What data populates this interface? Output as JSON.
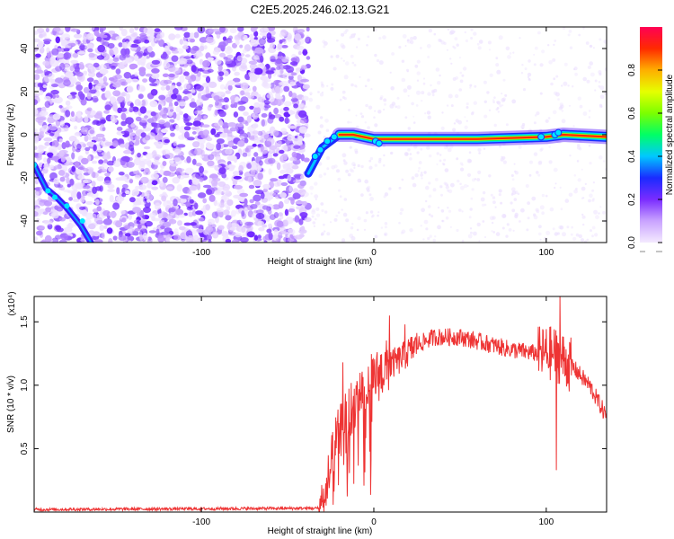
{
  "title": "C2E5.2025.246.02.13.G21",
  "chart_data": [
    {
      "type": "heatmap",
      "xlabel": "Height of straight line (km)",
      "ylabel": "Frequency (Hz)",
      "xlim": [
        -197,
        135
      ],
      "ylim": [
        -50,
        50
      ],
      "xticks": [
        -100,
        0,
        100
      ],
      "yticks": [
        -40,
        -20,
        0,
        20,
        40
      ],
      "colorbar": {
        "label": "Normalized spectral amplitude",
        "range": [
          0,
          1
        ],
        "ticks": [
          0.0,
          0.2,
          0.4,
          0.6,
          0.8
        ]
      },
      "noise_region_xmax": -38,
      "signal_track": [
        {
          "x": -197,
          "y": -14
        },
        {
          "x": -190,
          "y": -25
        },
        {
          "x": -184,
          "y": -29
        },
        {
          "x": -178,
          "y": -34
        },
        {
          "x": -170,
          "y": -42
        },
        {
          "x": -164,
          "y": -50
        },
        {
          "x": -38,
          "y": -18
        },
        {
          "x": -34,
          "y": -12
        },
        {
          "x": -30,
          "y": -6
        },
        {
          "x": -25,
          "y": -3
        },
        {
          "x": -20,
          "y": 0
        },
        {
          "x": -12,
          "y": 0
        },
        {
          "x": 0,
          "y": -2
        },
        {
          "x": 20,
          "y": -2
        },
        {
          "x": 60,
          "y": -2
        },
        {
          "x": 100,
          "y": -1
        },
        {
          "x": 110,
          "y": 0
        },
        {
          "x": 135,
          "y": -1
        }
      ]
    },
    {
      "type": "line",
      "xlabel": "Height of straight line (km)",
      "ylabel": "SNR (10 * v/v)",
      "y_multiplier": "(x10⁴)",
      "xlim": [
        -197,
        135
      ],
      "ylim": [
        0,
        1.7
      ],
      "xticks": [
        -100,
        0,
        100
      ],
      "yticks": [
        0.5,
        1.0,
        1.5
      ],
      "line_color": "#ee3333",
      "series_outline": [
        {
          "x": -197,
          "y": 0.02
        },
        {
          "x": -32,
          "y": 0.03
        },
        {
          "x": -28,
          "y": 0.15
        },
        {
          "x": -22,
          "y": 0.55
        },
        {
          "x": -16,
          "y": 0.75
        },
        {
          "x": -8,
          "y": 0.95
        },
        {
          "x": 0,
          "y": 1.05
        },
        {
          "x": 8,
          "y": 1.15
        },
        {
          "x": 15,
          "y": 1.2
        },
        {
          "x": 25,
          "y": 1.32
        },
        {
          "x": 35,
          "y": 1.38
        },
        {
          "x": 50,
          "y": 1.38
        },
        {
          "x": 65,
          "y": 1.33
        },
        {
          "x": 80,
          "y": 1.28
        },
        {
          "x": 95,
          "y": 1.25
        },
        {
          "x": 105,
          "y": 1.25
        },
        {
          "x": 115,
          "y": 1.15
        },
        {
          "x": 125,
          "y": 1.0
        },
        {
          "x": 135,
          "y": 0.75
        }
      ],
      "spikes": [
        {
          "x": -18,
          "y": 1.18
        },
        {
          "x": 9,
          "y": 1.55
        },
        {
          "x": 18,
          "y": 1.48
        },
        {
          "x": 108,
          "y": 1.7
        },
        {
          "x": 106,
          "y": 0.33
        }
      ]
    }
  ]
}
